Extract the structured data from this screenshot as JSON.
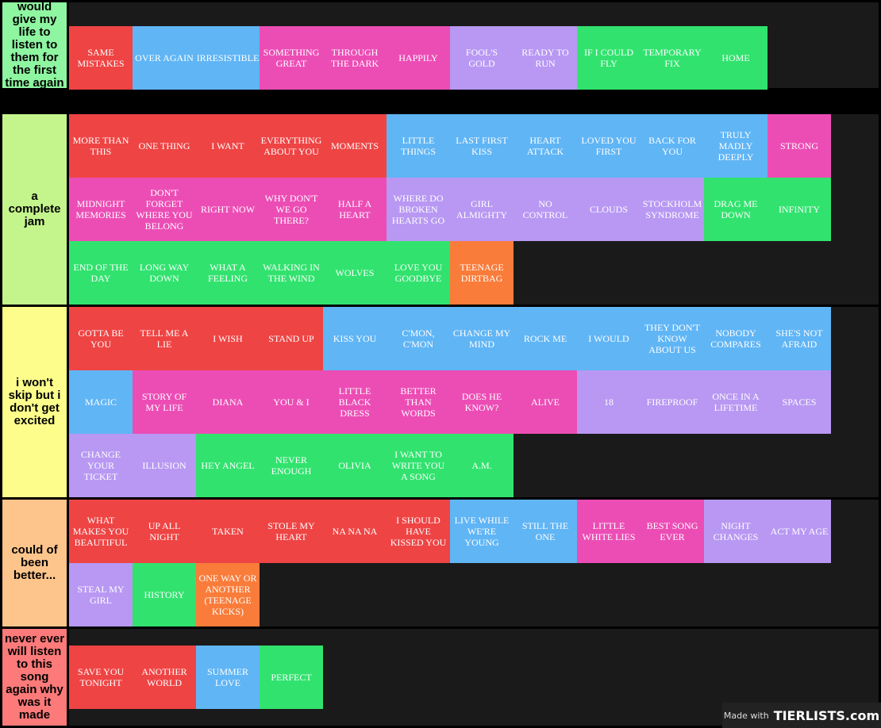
{
  "tiers": [
    {
      "label": "would give my life to listen to them for the first time again",
      "color": "#8ef5a0",
      "items": [
        {
          "title": "Same Mistakes",
          "color": "red"
        },
        {
          "title": "Over Again",
          "color": "blue"
        },
        {
          "title": "Irresistible",
          "color": "blue"
        },
        {
          "title": "Something Great",
          "color": "pink"
        },
        {
          "title": "Through the Dark",
          "color": "pink"
        },
        {
          "title": "Happily",
          "color": "pink"
        },
        {
          "title": "Fool's Gold",
          "color": "lavender"
        },
        {
          "title": "Ready to Run",
          "color": "lavender"
        },
        {
          "title": "If I Could Fly",
          "color": "green"
        },
        {
          "title": "Temporary Fix",
          "color": "green"
        },
        {
          "title": "Home",
          "color": "green"
        }
      ]
    },
    {
      "label": "a complete jam",
      "color": "#c4f58c",
      "items": [
        {
          "title": "More Than This",
          "color": "red"
        },
        {
          "title": "One Thing",
          "color": "red"
        },
        {
          "title": "I Want",
          "color": "red"
        },
        {
          "title": "Everything About You",
          "color": "red"
        },
        {
          "title": "Moments",
          "color": "red"
        },
        {
          "title": "Little Things",
          "color": "blue"
        },
        {
          "title": "Last First Kiss",
          "color": "blue"
        },
        {
          "title": "Heart Attack",
          "color": "blue"
        },
        {
          "title": "Loved You First",
          "color": "blue"
        },
        {
          "title": "Back for You",
          "color": "blue"
        },
        {
          "title": "Truly Madly Deeply",
          "color": "blue"
        },
        {
          "title": "Strong",
          "color": "pink"
        },
        {
          "title": "Midnight Memories",
          "color": "pink"
        },
        {
          "title": "Don't Forget Where You Belong",
          "color": "pink"
        },
        {
          "title": "Right Now",
          "color": "pink"
        },
        {
          "title": "Why Don't We Go There?",
          "color": "pink"
        },
        {
          "title": "Half a Heart",
          "color": "pink"
        },
        {
          "title": "Where Do Broken Hearts Go",
          "color": "lavender"
        },
        {
          "title": "Girl Almighty",
          "color": "lavender"
        },
        {
          "title": "No Control",
          "color": "lavender"
        },
        {
          "title": "Clouds",
          "color": "lavender"
        },
        {
          "title": "Stockholm Syndrome",
          "color": "lavender"
        },
        {
          "title": "Drag Me Down",
          "color": "green"
        },
        {
          "title": "Infinity",
          "color": "green"
        },
        {
          "title": "End of the Day",
          "color": "green"
        },
        {
          "title": "Long Way Down",
          "color": "green"
        },
        {
          "title": "What a Feeling",
          "color": "green"
        },
        {
          "title": "Walking in the Wind",
          "color": "green"
        },
        {
          "title": "Wolves",
          "color": "green"
        },
        {
          "title": "Love You Goodbye",
          "color": "green"
        },
        {
          "title": "Teenage Dirtbag",
          "color": "orange"
        }
      ]
    },
    {
      "label": "i won't skip but i don't get excited",
      "color": "#fdfd8c",
      "items": [
        {
          "title": "Gotta Be You",
          "color": "red"
        },
        {
          "title": "Tell Me a Lie",
          "color": "red"
        },
        {
          "title": "I Wish",
          "color": "red"
        },
        {
          "title": "Stand Up",
          "color": "red"
        },
        {
          "title": "Kiss You",
          "color": "blue"
        },
        {
          "title": "C'mon, C'mon",
          "color": "blue"
        },
        {
          "title": "Change My Mind",
          "color": "blue"
        },
        {
          "title": "Rock Me",
          "color": "blue"
        },
        {
          "title": "I Would",
          "color": "blue"
        },
        {
          "title": "They Don't Know About Us",
          "color": "blue"
        },
        {
          "title": "Nobody Compares",
          "color": "blue"
        },
        {
          "title": "She's Not Afraid",
          "color": "blue"
        },
        {
          "title": "Magic",
          "color": "blue"
        },
        {
          "title": "Story of My Life",
          "color": "pink"
        },
        {
          "title": "Diana",
          "color": "pink"
        },
        {
          "title": "You & I",
          "color": "pink"
        },
        {
          "title": "Little Black Dress",
          "color": "pink"
        },
        {
          "title": "Better Than Words",
          "color": "pink"
        },
        {
          "title": "Does He Know?",
          "color": "pink"
        },
        {
          "title": "Alive",
          "color": "pink"
        },
        {
          "title": "18",
          "color": "lavender"
        },
        {
          "title": "Fireproof",
          "color": "lavender"
        },
        {
          "title": "Once in a Lifetime",
          "color": "lavender"
        },
        {
          "title": "Spaces",
          "color": "lavender"
        },
        {
          "title": "Change Your Ticket",
          "color": "lavender"
        },
        {
          "title": "Illusion",
          "color": "lavender"
        },
        {
          "title": "Hey Angel",
          "color": "green"
        },
        {
          "title": "Never Enough",
          "color": "green"
        },
        {
          "title": "Olivia",
          "color": "green"
        },
        {
          "title": "I Want to Write You a Song",
          "color": "green"
        },
        {
          "title": "A.M.",
          "color": "green"
        }
      ]
    },
    {
      "label": "could of been better...",
      "color": "#fdc48c",
      "items": [
        {
          "title": "What Makes You Beautiful",
          "color": "red"
        },
        {
          "title": "Up All Night",
          "color": "red"
        },
        {
          "title": "Taken",
          "color": "red"
        },
        {
          "title": "Stole My Heart",
          "color": "red"
        },
        {
          "title": "Na Na Na",
          "color": "red"
        },
        {
          "title": "I Should Have Kissed You",
          "color": "red"
        },
        {
          "title": "Live While We're Young",
          "color": "blue"
        },
        {
          "title": "Still the One",
          "color": "blue"
        },
        {
          "title": "Little White Lies",
          "color": "pink"
        },
        {
          "title": "Best Song Ever",
          "color": "pink"
        },
        {
          "title": "Night Changes",
          "color": "lavender"
        },
        {
          "title": "Act My Age",
          "color": "lavender"
        },
        {
          "title": "Steal My Girl",
          "color": "lavender"
        },
        {
          "title": "History",
          "color": "green"
        },
        {
          "title": "One Way or Another (Teenage Kicks)",
          "color": "orange"
        }
      ]
    },
    {
      "label": "never ever will listen to this song again why was it made",
      "color": "#fd7a7a",
      "items": [
        {
          "title": "Save You Tonight",
          "color": "red"
        },
        {
          "title": "Another World",
          "color": "red"
        },
        {
          "title": "Summer Love",
          "color": "blue"
        },
        {
          "title": "Perfect",
          "color": "green"
        }
      ]
    }
  ],
  "colors": {
    "red": "#ef4444",
    "blue": "#60b5f5",
    "pink": "#ec4db5",
    "lavender": "#b898f3",
    "green": "#31e36e",
    "orange": "#f97c3a"
  },
  "watermark": {
    "prefix": "Made with",
    "logo": "TIERLISTS.com"
  }
}
